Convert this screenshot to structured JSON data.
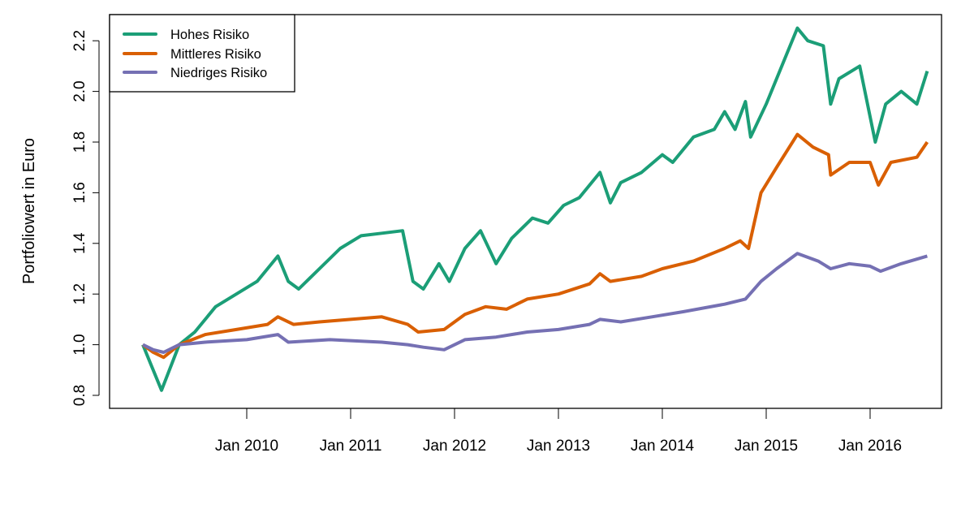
{
  "chart_data": {
    "type": "line",
    "title": "",
    "xlabel": "",
    "ylabel": "Portfoliowert in Euro",
    "ylim": [
      0.8,
      2.2
    ],
    "xlim": [
      2008.7,
      2016.7
    ],
    "yticks": [
      0.8,
      1.0,
      1.2,
      1.4,
      1.6,
      1.8,
      2.0,
      2.2
    ],
    "ytick_labels": [
      "0.8",
      "1.0",
      "1.2",
      "1.4",
      "1.6",
      "1.8",
      "2.0",
      "2.2"
    ],
    "xticks": [
      2010,
      2011,
      2012,
      2013,
      2014,
      2015,
      2016
    ],
    "xtick_labels": [
      "Jan 2010",
      "Jan 2011",
      "Jan 2012",
      "Jan 2013",
      "Jan 2014",
      "Jan 2015",
      "Jan 2016"
    ],
    "legend_position": "top-left",
    "series": [
      {
        "name": "Hohes Risiko",
        "color": "#1b9e77",
        "x": [
          2009.0,
          2009.08,
          2009.18,
          2009.35,
          2009.5,
          2009.7,
          2009.9,
          2010.1,
          2010.3,
          2010.4,
          2010.5,
          2010.7,
          2010.9,
          2011.1,
          2011.3,
          2011.5,
          2011.6,
          2011.7,
          2011.85,
          2011.95,
          2012.1,
          2012.25,
          2012.4,
          2012.55,
          2012.75,
          2012.9,
          2013.05,
          2013.2,
          2013.4,
          2013.5,
          2013.6,
          2013.8,
          2014.0,
          2014.1,
          2014.3,
          2014.5,
          2014.6,
          2014.7,
          2014.8,
          2014.85,
          2015.0,
          2015.1,
          2015.2,
          2015.3,
          2015.4,
          2015.55,
          2015.62,
          2015.7,
          2015.9,
          2016.05,
          2016.15,
          2016.3,
          2016.45,
          2016.55
        ],
        "values": [
          1.0,
          0.92,
          0.82,
          1.0,
          1.05,
          1.15,
          1.2,
          1.25,
          1.35,
          1.25,
          1.22,
          1.3,
          1.38,
          1.43,
          1.44,
          1.45,
          1.25,
          1.22,
          1.32,
          1.25,
          1.38,
          1.45,
          1.32,
          1.42,
          1.5,
          1.48,
          1.55,
          1.58,
          1.68,
          1.56,
          1.64,
          1.68,
          1.75,
          1.72,
          1.82,
          1.85,
          1.92,
          1.85,
          1.96,
          1.82,
          1.95,
          2.05,
          2.15,
          2.25,
          2.2,
          2.18,
          1.95,
          2.05,
          2.1,
          1.8,
          1.95,
          2.0,
          1.95,
          2.08
        ]
      },
      {
        "name": "Mittleres Risiko",
        "color": "#d95f02",
        "x": [
          2009.0,
          2009.1,
          2009.2,
          2009.35,
          2009.6,
          2009.9,
          2010.2,
          2010.3,
          2010.45,
          2010.7,
          2011.0,
          2011.3,
          2011.55,
          2011.65,
          2011.9,
          2012.1,
          2012.3,
          2012.5,
          2012.7,
          2013.0,
          2013.3,
          2013.4,
          2013.5,
          2013.8,
          2014.0,
          2014.3,
          2014.6,
          2014.75,
          2014.83,
          2014.95,
          2015.1,
          2015.3,
          2015.45,
          2015.6,
          2015.62,
          2015.8,
          2016.0,
          2016.08,
          2016.2,
          2016.45,
          2016.55
        ],
        "values": [
          1.0,
          0.97,
          0.95,
          1.0,
          1.04,
          1.06,
          1.08,
          1.11,
          1.08,
          1.09,
          1.1,
          1.11,
          1.08,
          1.05,
          1.06,
          1.12,
          1.15,
          1.14,
          1.18,
          1.2,
          1.24,
          1.28,
          1.25,
          1.27,
          1.3,
          1.33,
          1.38,
          1.41,
          1.38,
          1.6,
          1.7,
          1.83,
          1.78,
          1.75,
          1.67,
          1.72,
          1.72,
          1.63,
          1.72,
          1.74,
          1.8
        ]
      },
      {
        "name": "Niedriges Risiko",
        "color": "#7570b3",
        "x": [
          2009.0,
          2009.1,
          2009.2,
          2009.35,
          2009.6,
          2010.0,
          2010.3,
          2010.4,
          2010.8,
          2011.3,
          2011.55,
          2011.7,
          2011.9,
          2012.1,
          2012.4,
          2012.7,
          2013.0,
          2013.3,
          2013.4,
          2013.6,
          2013.9,
          2014.2,
          2014.6,
          2014.8,
          2014.95,
          2015.1,
          2015.3,
          2015.5,
          2015.62,
          2015.8,
          2016.0,
          2016.1,
          2016.3,
          2016.55
        ],
        "values": [
          1.0,
          0.98,
          0.97,
          1.0,
          1.01,
          1.02,
          1.04,
          1.01,
          1.02,
          1.01,
          1.0,
          0.99,
          0.98,
          1.02,
          1.03,
          1.05,
          1.06,
          1.08,
          1.1,
          1.09,
          1.11,
          1.13,
          1.16,
          1.18,
          1.25,
          1.3,
          1.36,
          1.33,
          1.3,
          1.32,
          1.31,
          1.29,
          1.32,
          1.35
        ]
      }
    ]
  }
}
